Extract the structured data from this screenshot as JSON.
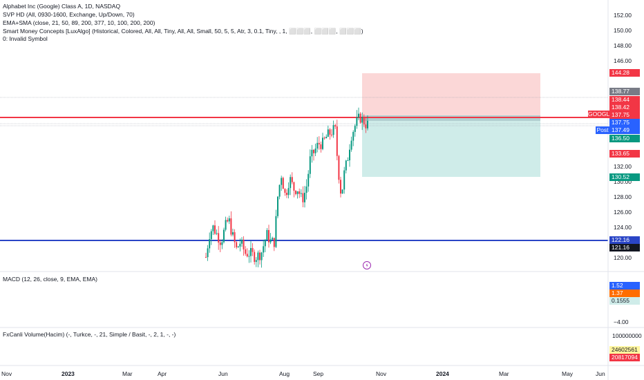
{
  "symbol": {
    "title": "Alphabet Inc (Google) Class A, 1D, NASDAQ",
    "indicators": [
      "SVP HD (All, 0930-1600, Exchange, Up/Down, 70)",
      "EMA+SMA (close, 21, 50, 89, 200, 377, 10, 100, 200, 200)",
      "Smart Money Concepts [LuxAlgo] (Historical, Colored, All, All, Tiny, All, All, Small, 50, 5, 5, Atr, 3, 0.1, Tiny, , 1, ⬜⬜⬜, ⬜⬜⬜, ⬜⬜⬜)",
      "0: Invalid Symbol"
    ]
  },
  "price_axis": {
    "ticks": [
      "152.00",
      "150.00",
      "148.00",
      "146.00",
      "132.00",
      "130.00",
      "128.00",
      "126.00",
      "124.00",
      "120.00"
    ]
  },
  "price_badges": {
    "target": "144.28",
    "high": "138.77",
    "b1": "138.44",
    "b2": "138.42",
    "symbol_tag": "GOOGL",
    "current": "137.75",
    "current2": "137.75",
    "post_tag": "Post",
    "post": "137.49",
    "entry": "136.50",
    "mid": "133.65",
    "stop": "130.52",
    "blue_line": "122.16",
    "blue_line2": "121.16"
  },
  "macd": {
    "title": "MACD (12, 26, close, 9, EMA, EMA)",
    "values": [
      "1.52",
      "1.37",
      "0.1555"
    ],
    "axis_low": "−4.00",
    "colors": {
      "macd": "#2962ff",
      "signal": "#ff6d00",
      "hist": "#26a69a"
    }
  },
  "volume": {
    "title": "FxCanli Volume(Hacim) (-, Turkce, -, 21, Simple / Basit, -, 2, 1, -, -)",
    "axis_top": "100000000",
    "values": [
      "24602561",
      "20817094"
    ]
  },
  "time_axis": [
    "Nov",
    "2023",
    "Mar",
    "Apr",
    "Jun",
    "Aug",
    "Sep",
    "Nov",
    "2024",
    "Mar",
    "May",
    "Jun"
  ],
  "colors": {
    "up": "#089981",
    "down": "#f23645",
    "red_line": "#f23645",
    "blue_line": "#2a45c6",
    "target_zone": "#fbd7d7",
    "stop_zone": "#cfece9"
  }
}
